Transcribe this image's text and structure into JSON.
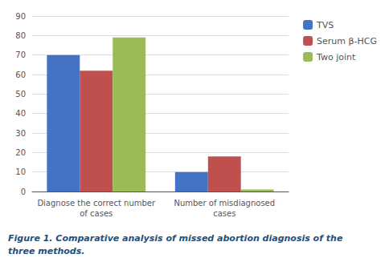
{
  "chart_data": {
    "type": "bar",
    "categories": [
      "Diagnose the correct number\nof cases",
      "Number of misdiagnosed\ncases"
    ],
    "series": [
      {
        "name": "TVS",
        "color": "#4472C4",
        "values": [
          70,
          10
        ]
      },
      {
        "name": "Serum β-HCG",
        "color": "#C0504D",
        "values": [
          62,
          18
        ]
      },
      {
        "name": "Two joint",
        "color": "#9BBB59",
        "values": [
          79,
          1
        ]
      }
    ],
    "ylim": [
      0,
      90
    ],
    "yticks": [
      0,
      10,
      20,
      30,
      40,
      50,
      60,
      70,
      80,
      90
    ],
    "grid": true,
    "legend": "upper right",
    "annotations": [
      "Figure 1. Comparative analysis of missed abortion diagnosis of the",
      "three methods."
    ]
  }
}
